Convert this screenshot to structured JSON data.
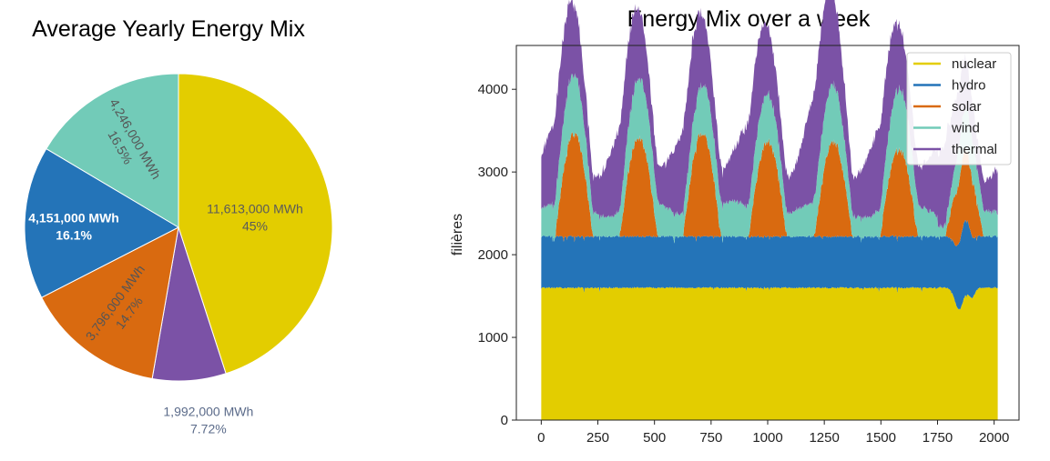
{
  "chart_data": [
    {
      "type": "pie",
      "title": "Average Yearly Energy Mix",
      "slices": [
        {
          "name": "nuclear",
          "value": 11613000,
          "label": "11,613,000 MWh",
          "pct": "45%",
          "color": "#e3cd00"
        },
        {
          "name": "thermal",
          "value": 1992000,
          "label": "1,992,000 MWh",
          "pct": "7.72%",
          "color": "#7b52a6"
        },
        {
          "name": "solar",
          "value": 3796000,
          "label": "3,796,000 MWh",
          "pct": "14.7%",
          "color": "#d96a10"
        },
        {
          "name": "hydro",
          "value": 4151000,
          "label": "4,151,000 MWh",
          "pct": "16.1%",
          "color": "#2474b8"
        },
        {
          "name": "wind",
          "value": 4246000,
          "label": "4,246,000 MWh",
          "pct": "16.5%",
          "color": "#72cbb8"
        }
      ]
    },
    {
      "type": "area",
      "title": "Energy Mix over a week",
      "xlabel": "",
      "ylabel": "filières",
      "xlim": [
        -110,
        2110
      ],
      "ylim": [
        0,
        4530
      ],
      "xticks": [
        0,
        250,
        500,
        750,
        1000,
        1250,
        1500,
        1750,
        2000
      ],
      "yticks": [
        0,
        1000,
        2000,
        3000,
        4000
      ],
      "x_range": [
        0,
        2016
      ],
      "legend_position": "top-right",
      "series": [
        {
          "name": "nuclear",
          "color": "#e3cd00",
          "description": "approximately 1600 nearly constant, dipping to about 1350 near x=1840"
        },
        {
          "name": "hydro",
          "color": "#2474b8",
          "description": "approximately 620 nearly constant"
        },
        {
          "name": "solar",
          "color": "#d96a10",
          "description": "daily peaks up to about 1250 centered near x=145, 430, 710, 1000, 1290, 1580, 1870"
        },
        {
          "name": "wind",
          "color": "#72cbb8",
          "description": "approximately 250-450"
        },
        {
          "name": "thermal",
          "color": "#7b52a6",
          "description": "approximately 400-1100, daily peaks"
        }
      ]
    }
  ]
}
